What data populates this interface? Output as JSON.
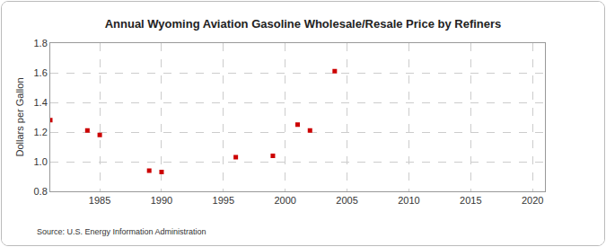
{
  "chart_data": {
    "type": "scatter",
    "title": "Annual Wyoming Aviation Gasoline Wholesale/Resale Price by Refiners",
    "y_label": "Dollars per Gallon",
    "source": "Source: U.S. Energy Information Administration",
    "x": [
      1981,
      1984,
      1985,
      1989,
      1990,
      1996,
      1999,
      2001,
      2002,
      2004
    ],
    "values": [
      1.28,
      1.21,
      1.18,
      0.94,
      0.93,
      1.03,
      1.04,
      1.25,
      1.21,
      1.61
    ],
    "color": "#cc0000",
    "marker": "square",
    "xlim": [
      1981,
      2021
    ],
    "xticks": [
      1985,
      1990,
      1995,
      2000,
      2005,
      2010,
      2015,
      2020
    ],
    "ylim": [
      0.8,
      1.8
    ],
    "yticks": [
      {
        "value": 0.8,
        "label": "0.8"
      },
      {
        "value": 1.0,
        "label": "1.0"
      },
      {
        "value": 1.2,
        "label": "1.2"
      },
      {
        "value": 1.4,
        "label": "1.4"
      },
      {
        "value": 1.6,
        "label": "1.6"
      },
      {
        "value": 1.8,
        "label": "1.8"
      }
    ],
    "grid": true
  }
}
